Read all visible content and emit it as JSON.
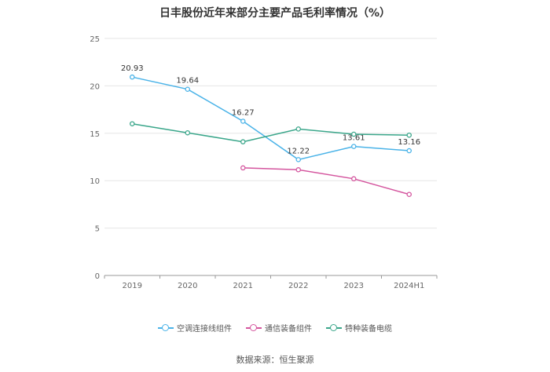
{
  "chart_data": {
    "type": "line",
    "title": "日丰股份近年来部分主要产品毛利率情况（%）",
    "categories": [
      "2019",
      "2020",
      "2021",
      "2022",
      "2023",
      "2024H1"
    ],
    "ylim": [
      0,
      25
    ],
    "yticks": [
      "0",
      "5",
      "10",
      "15",
      "20",
      "25"
    ],
    "grid": true,
    "legend_position": "bottom-center",
    "series": [
      {
        "name": "空调连接线组件",
        "color": "#4ab3e8",
        "values": [
          20.93,
          19.64,
          16.27,
          12.22,
          13.61,
          13.16
        ],
        "labels": [
          "20.93",
          "19.64",
          "16.27",
          "12.22",
          "13.61",
          "13.16"
        ]
      },
      {
        "name": "通信装备组件",
        "color": "#d4559e",
        "values": [
          null,
          null,
          11.35,
          11.15,
          10.2,
          8.55
        ]
      },
      {
        "name": "特种装备电缆",
        "color": "#3aa68a",
        "values": [
          16.0,
          15.05,
          14.1,
          15.45,
          14.9,
          14.8
        ]
      }
    ]
  },
  "source": "数据来源：恒生聚源"
}
